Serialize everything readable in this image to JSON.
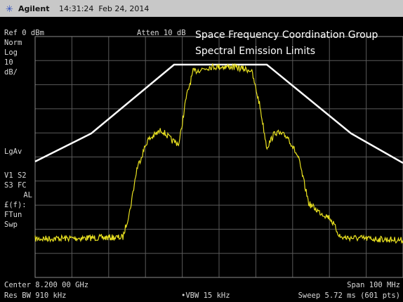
{
  "header": {
    "brand": "Agilent",
    "datetime": "14:31:24  Feb 24, 2014"
  },
  "settings": {
    "reference": "Ref 0 dBm",
    "attenuation": "Atten 10 dB"
  },
  "side_labels": [
    "Norm",
    "Log",
    "10",
    "dB/",
    "LgAv",
    "V1  S2",
    "S3  FC",
    "AL",
    "£(f):",
    "FTun",
    "Swp"
  ],
  "overlay": {
    "title": "Space Frequency Coordination Group",
    "subtitle": "Spectral Emission Limits"
  },
  "footer": {
    "center": "Center 8.200 00 GHz",
    "span": "Span 100 MHz",
    "res_bw": "Res BW 910 kHz",
    "vbw": "•VBW 15 kHz",
    "sweep": "Sweep 5.72 ms (601 pts)"
  }
}
